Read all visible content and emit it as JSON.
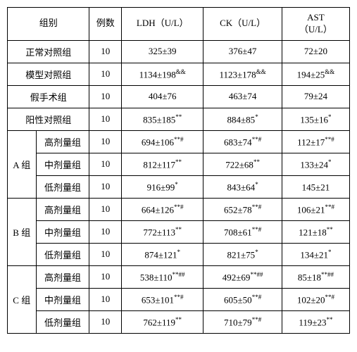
{
  "headers": {
    "group": "组别",
    "n": "例数",
    "ldh": "LDH（U/L）",
    "ck": "CK（U/L）",
    "ast_line1": "AST",
    "ast_line2": "（U/L）"
  },
  "rows": {
    "normal": {
      "label": "正常对照组",
      "n": "10",
      "ldh": "325±39",
      "ck": "376±47",
      "ast": "72±20"
    },
    "model": {
      "label": "模型对照组",
      "n": "10",
      "ldh": "1134±198",
      "ldh_sup": "&&",
      "ck": "1123±178",
      "ck_sup": "&&",
      "ast": "194±25",
      "ast_sup": "&&"
    },
    "sham": {
      "label": "假手术组",
      "n": "10",
      "ldh": "404±76",
      "ck": "463±74",
      "ast": "79±24"
    },
    "positive": {
      "label": "阳性对照组",
      "n": "10",
      "ldh": "835±185",
      "ldh_sup": "**",
      "ck": "884±85",
      "ck_sup": "*",
      "ast": "135±16",
      "ast_sup": "*"
    },
    "a": {
      "label": "A 组",
      "high": {
        "label": "高剂量组",
        "n": "10",
        "ldh": "694±106",
        "ldh_sup": "**#",
        "ck": "683±74",
        "ck_sup": "**#",
        "ast": "112±17",
        "ast_sup": "**#"
      },
      "mid": {
        "label": "中剂量组",
        "n": "10",
        "ldh": "812±117",
        "ldh_sup": "**",
        "ck": "722±68",
        "ck_sup": "**",
        "ast": "133±24",
        "ast_sup": "*"
      },
      "low": {
        "label": "低剂量组",
        "n": "10",
        "ldh": "916±99",
        "ldh_sup": "*",
        "ck": "843±64",
        "ck_sup": "*",
        "ast": "145±21"
      }
    },
    "b": {
      "label": "B 组",
      "high": {
        "label": "高剂量组",
        "n": "10",
        "ldh": "664±126",
        "ldh_sup": "**#",
        "ck": "652±78",
        "ck_sup": "**#",
        "ast": "106±21",
        "ast_sup": "**#"
      },
      "mid": {
        "label": "中剂量组",
        "n": "10",
        "ldh": "772±113",
        "ldh_sup": "**",
        "ck": "708±61",
        "ck_sup": "**#",
        "ast": "121±18",
        "ast_sup": "**"
      },
      "low": {
        "label": "低剂量组",
        "n": "10",
        "ldh": "874±121",
        "ldh_sup": "*",
        "ck": "821±75",
        "ck_sup": "*",
        "ast": "134±21",
        "ast_sup": "*"
      }
    },
    "c": {
      "label": "C 组",
      "high": {
        "label": "高剂量组",
        "n": "10",
        "ldh": "538±110",
        "ldh_sup": "**##",
        "ck": "492±69",
        "ck_sup": "**##",
        "ast": "85±18",
        "ast_sup": "**##"
      },
      "mid": {
        "label": "中剂量组",
        "n": "10",
        "ldh": "653±101",
        "ldh_sup": "**#",
        "ck": "605±50",
        "ck_sup": "**#",
        "ast": "102±20",
        "ast_sup": "**#"
      },
      "low": {
        "label": "低剂量组",
        "n": "10",
        "ldh": "762±119",
        "ldh_sup": "**",
        "ck": "710±79",
        "ck_sup": "**#",
        "ast": "119±23",
        "ast_sup": "**"
      }
    }
  },
  "colwidths": {
    "c1": "40",
    "c2": "75",
    "c3": "45",
    "c4": "115",
    "c5": "110",
    "c6": "95"
  }
}
